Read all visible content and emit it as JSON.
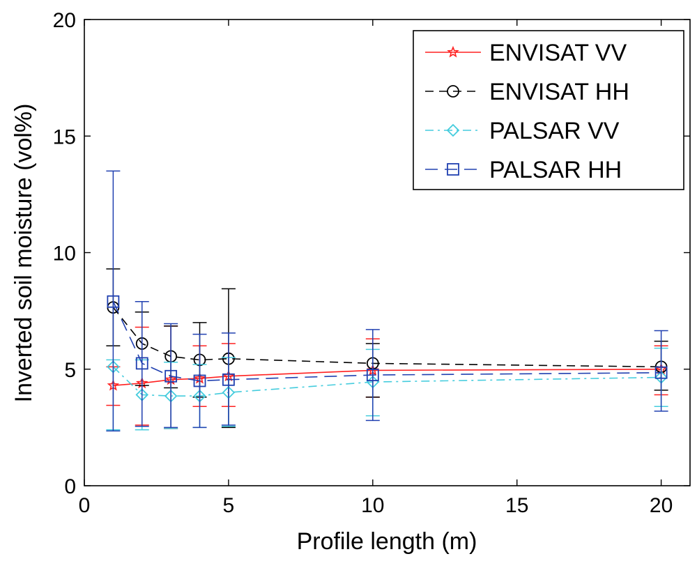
{
  "chart_data": {
    "type": "line",
    "title": "",
    "xlabel": "Profile length (m)",
    "ylabel": "Inverted soil moisture (vol%)",
    "xlim": [
      0,
      21
    ],
    "ylim": [
      0,
      20
    ],
    "xticks": [
      0,
      5,
      10,
      15,
      20
    ],
    "yticks": [
      0,
      5,
      10,
      15,
      20
    ],
    "x": [
      1,
      2,
      3,
      4,
      5,
      10,
      20
    ],
    "legend_position": "top-right",
    "series": [
      {
        "name": "ENVISAT VV",
        "color": "#ff2020",
        "dash": "solid",
        "marker": "star",
        "values": [
          4.3,
          4.4,
          4.55,
          4.6,
          4.7,
          4.95,
          5.0
        ],
        "err_low": [
          3.45,
          2.6,
          2.45,
          3.4,
          3.4,
          3.8,
          3.9
        ],
        "err_high": [
          5.1,
          6.8,
          6.85,
          6.0,
          6.1,
          6.3,
          6.0
        ]
      },
      {
        "name": "ENVISAT HH",
        "color": "#000000",
        "dash": "dashed",
        "marker": "circle",
        "values": [
          7.65,
          6.1,
          5.55,
          5.4,
          5.45,
          5.25,
          5.1
        ],
        "err_low": [
          6.0,
          4.3,
          4.2,
          3.8,
          2.5,
          3.8,
          4.1
        ],
        "err_high": [
          9.3,
          7.45,
          6.85,
          7.0,
          8.45,
          6.1,
          6.2
        ]
      },
      {
        "name": "PALSAR VV",
        "color": "#44ccdd",
        "dash": "dashdot",
        "marker": "diamond",
        "values": [
          5.1,
          3.9,
          3.85,
          3.85,
          4.0,
          4.45,
          4.65
        ],
        "err_low": [
          2.4,
          2.4,
          2.45,
          2.5,
          2.55,
          3.0,
          3.4
        ],
        "err_high": [
          5.4,
          5.4,
          5.3,
          5.2,
          5.5,
          5.85,
          5.9
        ]
      },
      {
        "name": "PALSAR HH",
        "color": "#2040b0",
        "dash": "longdash",
        "marker": "square",
        "values": [
          7.9,
          5.25,
          4.7,
          4.5,
          4.55,
          4.75,
          4.85
        ],
        "err_low": [
          2.35,
          2.55,
          2.5,
          2.5,
          2.6,
          2.8,
          3.2
        ],
        "err_high": [
          13.5,
          7.9,
          6.95,
          6.5,
          6.55,
          6.7,
          6.65
        ]
      }
    ]
  }
}
